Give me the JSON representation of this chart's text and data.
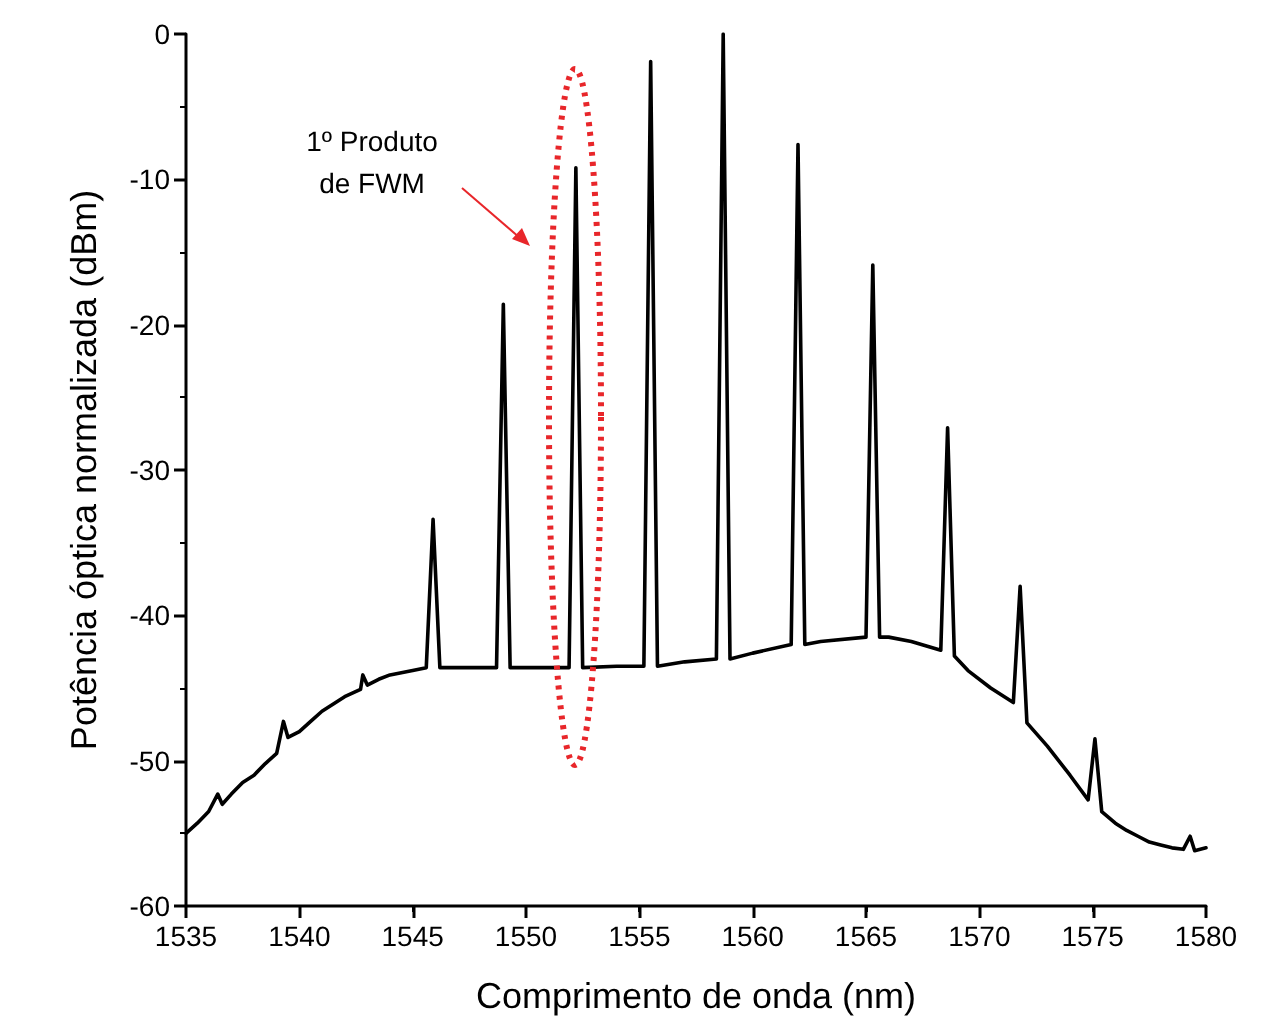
{
  "chart_data": {
    "type": "line",
    "xlabel": "Comprimento de onda (nm)",
    "ylabel": "Potência óptica normalizada (dBm)",
    "xlim": [
      1535,
      1580
    ],
    "xticks": [
      1535,
      1540,
      1545,
      1550,
      1555,
      1560,
      1565,
      1570,
      1575,
      1580
    ],
    "ylim": [
      -60,
      0
    ],
    "yticks": [
      -60,
      -50,
      -40,
      -30,
      -20,
      -10,
      0
    ],
    "grid": false,
    "marker": "none",
    "line_style": "solid",
    "annotations": [
      "1º Produto\nde FWM"
    ],
    "series": [
      {
        "color": "#000000",
        "x": [
          1535,
          1535.5,
          1536,
          1536.4,
          1536.6,
          1537,
          1537.5,
          1538,
          1538.5,
          1539,
          1539.3,
          1539.5,
          1540,
          1540.5,
          1541,
          1541.5,
          1542,
          1542.7,
          1542.8,
          1543,
          1543.5,
          1544,
          1545,
          1545.6,
          1545.9,
          1546.2,
          1547,
          1548.7,
          1549.0,
          1549.3,
          1550,
          1551.9,
          1552.2,
          1552.5,
          1554,
          1555.2,
          1555.5,
          1555.8,
          1557,
          1558.4,
          1558.7,
          1559,
          1560,
          1561.7,
          1562.0,
          1562.3,
          1563,
          1565.0,
          1565.3,
          1565.6,
          1566,
          1567,
          1568.3,
          1568.6,
          1568.9,
          1569.5,
          1570.5,
          1571.5,
          1571.8,
          1572.1,
          1573,
          1574,
          1574.8,
          1575.1,
          1575.4,
          1576,
          1576.5,
          1577,
          1577.5,
          1578,
          1578.5,
          1579,
          1579.3,
          1579.5,
          1580
        ],
        "values": [
          -55,
          -54.3,
          -53.5,
          -52.3,
          -53,
          -52.3,
          -51.5,
          -51,
          -50.2,
          -49.5,
          -47.3,
          -48.4,
          -48,
          -47.3,
          -46.6,
          -46.1,
          -45.6,
          -45.1,
          -44.1,
          -44.8,
          -44.4,
          -44.1,
          -43.8,
          -43.6,
          -33.4,
          -43.6,
          -43.6,
          -43.6,
          -18.6,
          -43.6,
          -43.6,
          -43.6,
          -9.2,
          -43.6,
          -43.5,
          -43.5,
          -1.9,
          -43.5,
          -43.2,
          -43,
          0,
          -43,
          -42.6,
          -42,
          -7.6,
          -42,
          -41.8,
          -41.5,
          -15.9,
          -41.5,
          -41.5,
          -41.8,
          -42.4,
          -27.1,
          -42.8,
          -43.8,
          -45,
          -46,
          -38,
          -47.4,
          -49,
          -51,
          -52.7,
          -48.5,
          -53.5,
          -54.3,
          -54.8,
          -55.2,
          -55.6,
          -55.8,
          -56,
          -56.1,
          -55.2,
          -56.2,
          -56
        ]
      }
    ]
  }
}
